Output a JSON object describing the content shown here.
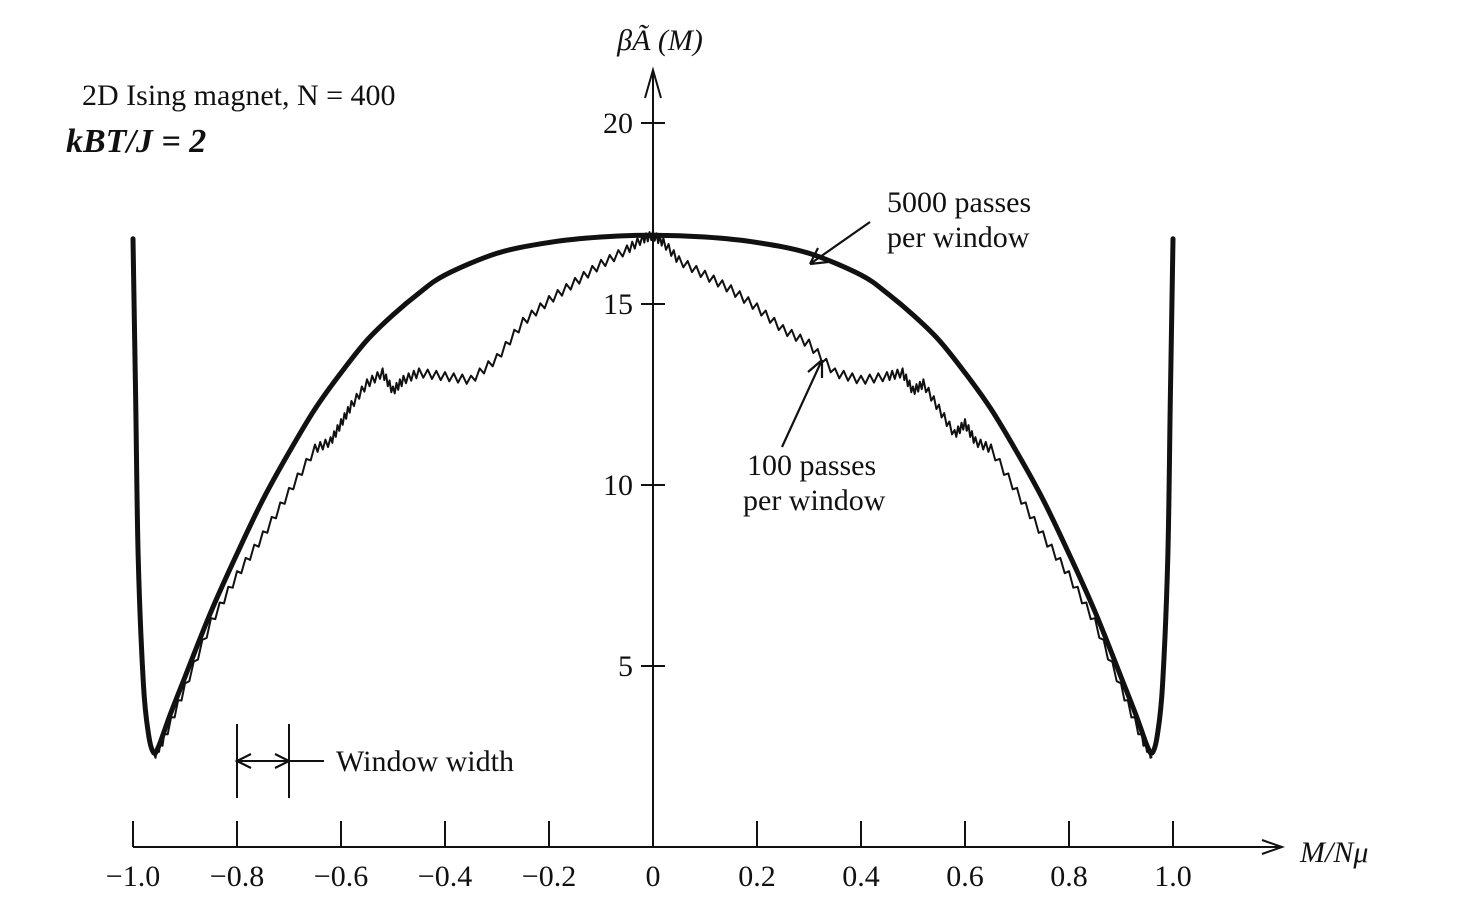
{
  "chart_data": {
    "type": "line",
    "ylabel": "βÃ (M)",
    "xlabel": "M/Nμ",
    "xlim": [
      -1.0,
      1.0
    ],
    "ylim": [
      0,
      21
    ],
    "grid": false,
    "x_ticks": [
      -1.0,
      -0.8,
      -0.6,
      -0.4,
      -0.2,
      0,
      0.2,
      0.4,
      0.6,
      0.8,
      1.0
    ],
    "x_tick_labels": [
      "−1.0",
      "−0.8",
      "−0.6",
      "−0.4",
      "−0.2",
      "0",
      "0.2",
      "0.4",
      "0.6",
      "0.8",
      "1.0"
    ],
    "y_ticks": [
      5,
      10,
      15,
      20
    ],
    "y_tick_labels": [
      "5",
      "10",
      "15",
      "20"
    ],
    "series": [
      {
        "name": "5000 passes per window",
        "x": [
          -1.0,
          -0.995,
          -0.99,
          -0.98,
          -0.97,
          -0.96,
          -0.95,
          -0.93,
          -0.9,
          -0.85,
          -0.8,
          -0.75,
          -0.7,
          -0.65,
          -0.6,
          -0.55,
          -0.5,
          -0.45,
          -0.4,
          -0.3,
          -0.2,
          -0.1,
          0,
          0.1,
          0.2,
          0.3,
          0.4,
          0.45,
          0.5,
          0.55,
          0.6,
          0.65,
          0.7,
          0.75,
          0.8,
          0.85,
          0.9,
          0.93,
          0.95,
          0.96,
          0.97,
          0.98,
          0.99,
          0.995,
          1.0
        ],
        "y": [
          16.8,
          12.5,
          8.0,
          4.5,
          3.1,
          2.6,
          2.8,
          3.6,
          4.7,
          6.5,
          8.1,
          9.6,
          10.9,
          12.1,
          13.1,
          14.0,
          14.7,
          15.3,
          15.8,
          16.4,
          16.7,
          16.85,
          16.9,
          16.85,
          16.7,
          16.4,
          15.8,
          15.3,
          14.7,
          14.0,
          13.1,
          12.1,
          10.9,
          9.6,
          8.1,
          6.5,
          4.7,
          3.6,
          2.8,
          2.6,
          3.1,
          4.5,
          8.0,
          12.5,
          16.8
        ]
      },
      {
        "name": "100 passes per window",
        "x": [
          -0.96,
          -0.94,
          -0.9,
          -0.85,
          -0.8,
          -0.75,
          -0.7,
          -0.65,
          -0.62,
          -0.6,
          -0.58,
          -0.55,
          -0.52,
          -0.5,
          -0.48,
          -0.45,
          -0.4,
          -0.35,
          -0.3,
          -0.25,
          -0.2,
          -0.15,
          -0.1,
          -0.05,
          -0.02,
          0,
          0.02,
          0.05,
          0.1,
          0.15,
          0.2,
          0.25,
          0.3,
          0.35,
          0.4,
          0.45,
          0.48,
          0.5,
          0.52,
          0.55,
          0.58,
          0.6,
          0.62,
          0.65,
          0.7,
          0.75,
          0.8,
          0.85,
          0.9,
          0.94,
          0.96
        ],
        "y": [
          2.5,
          3.0,
          4.4,
          6.2,
          7.5,
          8.6,
          9.8,
          11.0,
          11.2,
          11.7,
          12.2,
          12.8,
          13.1,
          12.6,
          12.9,
          13.1,
          13.0,
          12.9,
          13.5,
          14.5,
          15.1,
          15.6,
          16.1,
          16.5,
          16.8,
          16.9,
          16.7,
          16.2,
          15.8,
          15.4,
          14.9,
          14.3,
          13.9,
          13.1,
          12.9,
          13.0,
          13.1,
          12.6,
          12.8,
          12.1,
          11.4,
          11.7,
          11.2,
          11.0,
          9.8,
          8.6,
          7.5,
          6.2,
          4.4,
          3.0,
          2.5
        ]
      }
    ],
    "annotations": {
      "system": "2D Ising magnet, N = 400",
      "temperature": "kBT/J = 2",
      "label_5000_line1": "5000 passes",
      "label_5000_line2": "per window",
      "label_100_line1": "100 passes",
      "label_100_line2": "per window",
      "window_width": "Window width"
    },
    "window_width_marker": {
      "x_start": -0.8,
      "x_end": -0.7
    }
  }
}
